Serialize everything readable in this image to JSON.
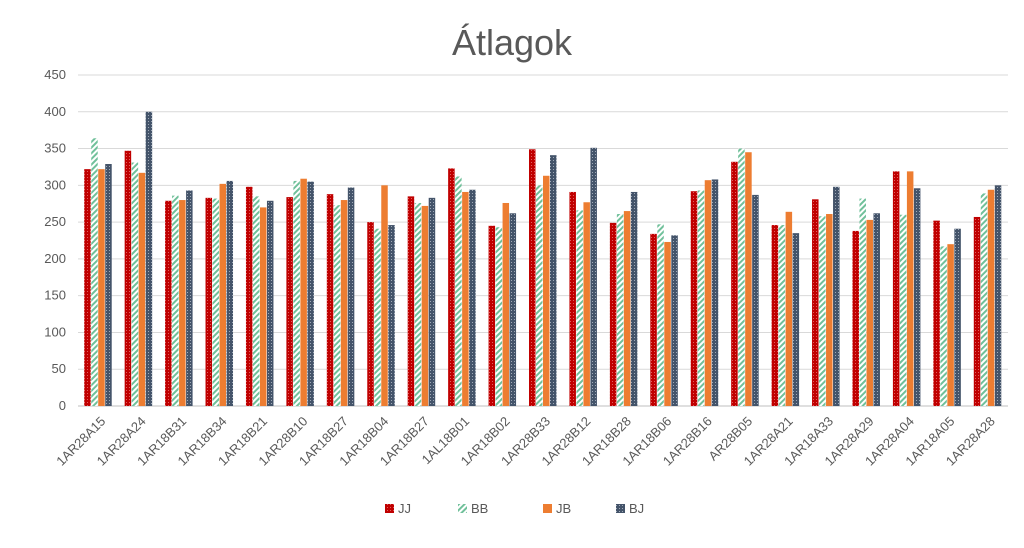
{
  "chart_data": {
    "type": "bar",
    "title": "Átlagok",
    "xlabel": "",
    "ylabel": "",
    "ylim": [
      0,
      450
    ],
    "yticks": [
      0,
      50,
      100,
      150,
      200,
      250,
      300,
      350,
      400,
      450
    ],
    "grid": true,
    "legend_position": "bottom",
    "categories": [
      "1AR28A15",
      "1AR28A24",
      "1AR18B31",
      "1AR18B34",
      "1AR18B21",
      "1AR28B10",
      "1AR18B27",
      "1AR18B04",
      "1AR18B27",
      "1AL18B01",
      "1AR18B02",
      "1AR28B33",
      "1AR28B12",
      "1AR18B28",
      "1AR18B06",
      "1AR28B16",
      "AR28B05",
      "1AR28A21",
      "1AR18A33",
      "1AR28A29",
      "1AR28A04",
      "1AR18A05",
      "1AR28A28"
    ],
    "series": [
      {
        "name": "JJ",
        "color": "#c00000",
        "pattern": "dots",
        "values": [
          322,
          347,
          279,
          283,
          298,
          284,
          288,
          250,
          285,
          323,
          245,
          349,
          291,
          249,
          234,
          292,
          332,
          246,
          281,
          238,
          319,
          252,
          257
        ]
      },
      {
        "name": "BB",
        "color": "#70c09a",
        "pattern": "diagonal",
        "values": [
          364,
          331,
          286,
          282,
          285,
          306,
          273,
          241,
          276,
          312,
          243,
          300,
          266,
          261,
          247,
          293,
          350,
          246,
          258,
          282,
          260,
          217,
          289
        ]
      },
      {
        "name": "JB",
        "color": "#ed7d31",
        "pattern": "solid",
        "values": [
          322,
          317,
          280,
          302,
          270,
          309,
          280,
          300,
          272,
          291,
          276,
          313,
          277,
          265,
          223,
          307,
          345,
          264,
          261,
          253,
          319,
          220,
          294
        ]
      },
      {
        "name": "BJ",
        "color": "#44546a",
        "pattern": "checker",
        "values": [
          329,
          400,
          293,
          306,
          279,
          305,
          297,
          246,
          283,
          294,
          262,
          341,
          351,
          291,
          232,
          308,
          287,
          235,
          298,
          262,
          296,
          241,
          300
        ]
      }
    ]
  }
}
